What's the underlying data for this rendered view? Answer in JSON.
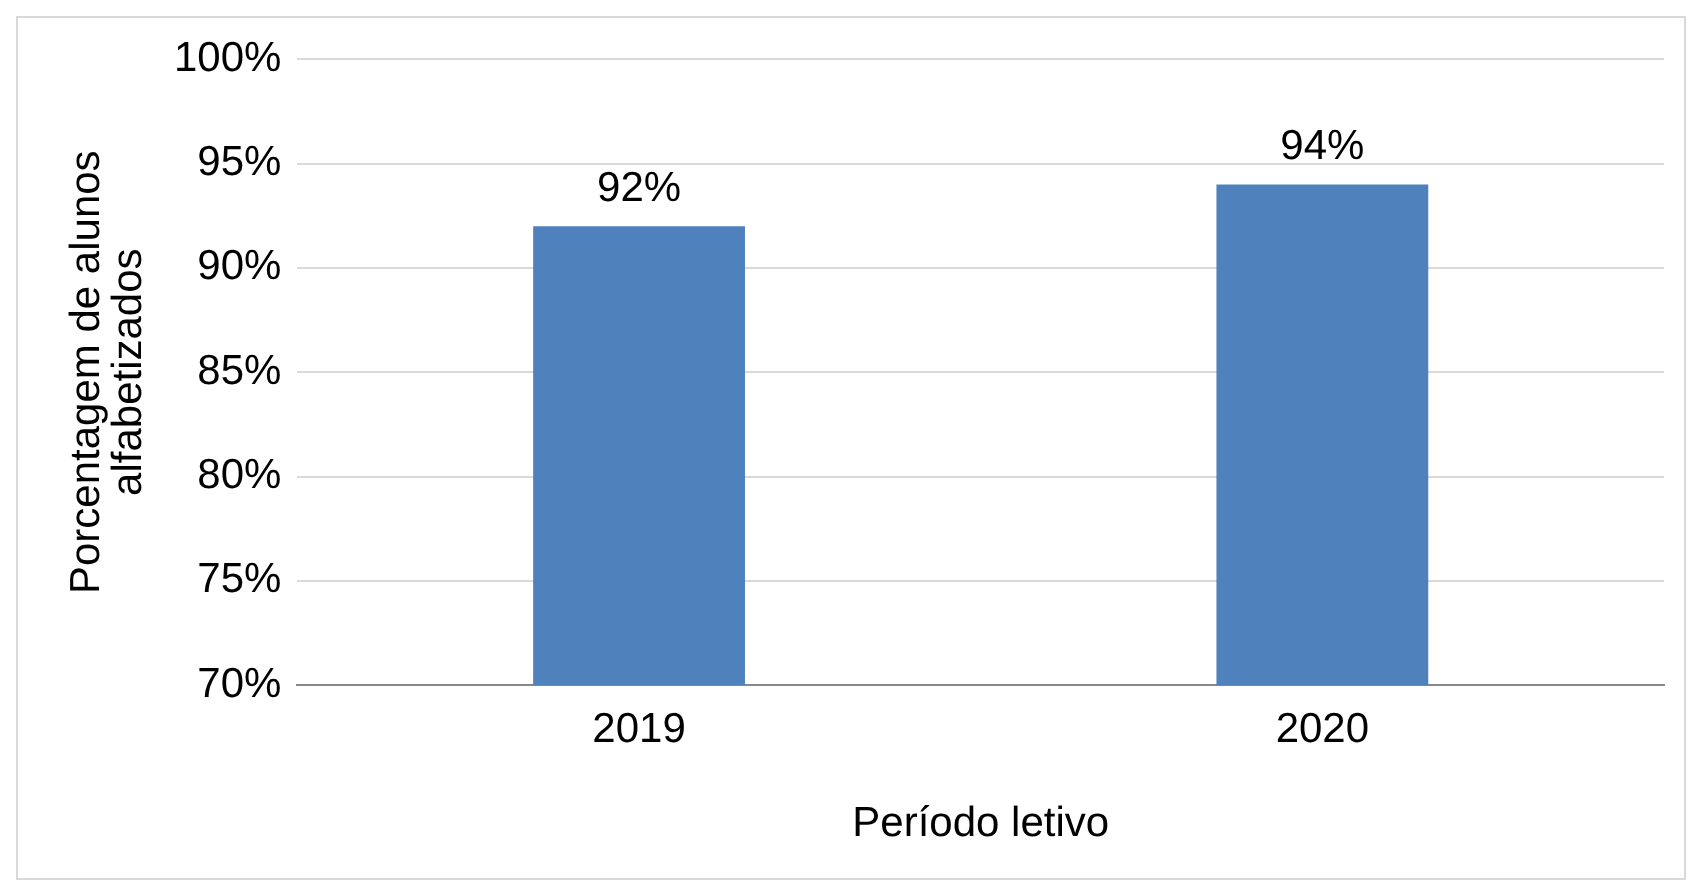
{
  "chart_data": {
    "type": "bar",
    "categories": [
      "2019",
      "2020"
    ],
    "values": [
      92,
      94
    ],
    "color": "#4f81bd",
    "value_labels": [
      "92%",
      "94%"
    ],
    "xlabel": "Período letivo",
    "ylabel": "Porcentagem de alunos alfabetizados",
    "ylim": [
      70,
      100
    ],
    "yticks": [
      {
        "value": 70,
        "label": "70%"
      },
      {
        "value": 75,
        "label": "75%"
      },
      {
        "value": 80,
        "label": "80%"
      },
      {
        "value": 85,
        "label": "85%"
      },
      {
        "value": 90,
        "label": "90%"
      },
      {
        "value": 95,
        "label": "95%"
      },
      {
        "value": 100,
        "label": "100%"
      }
    ],
    "grid": "y",
    "legend": false
  }
}
